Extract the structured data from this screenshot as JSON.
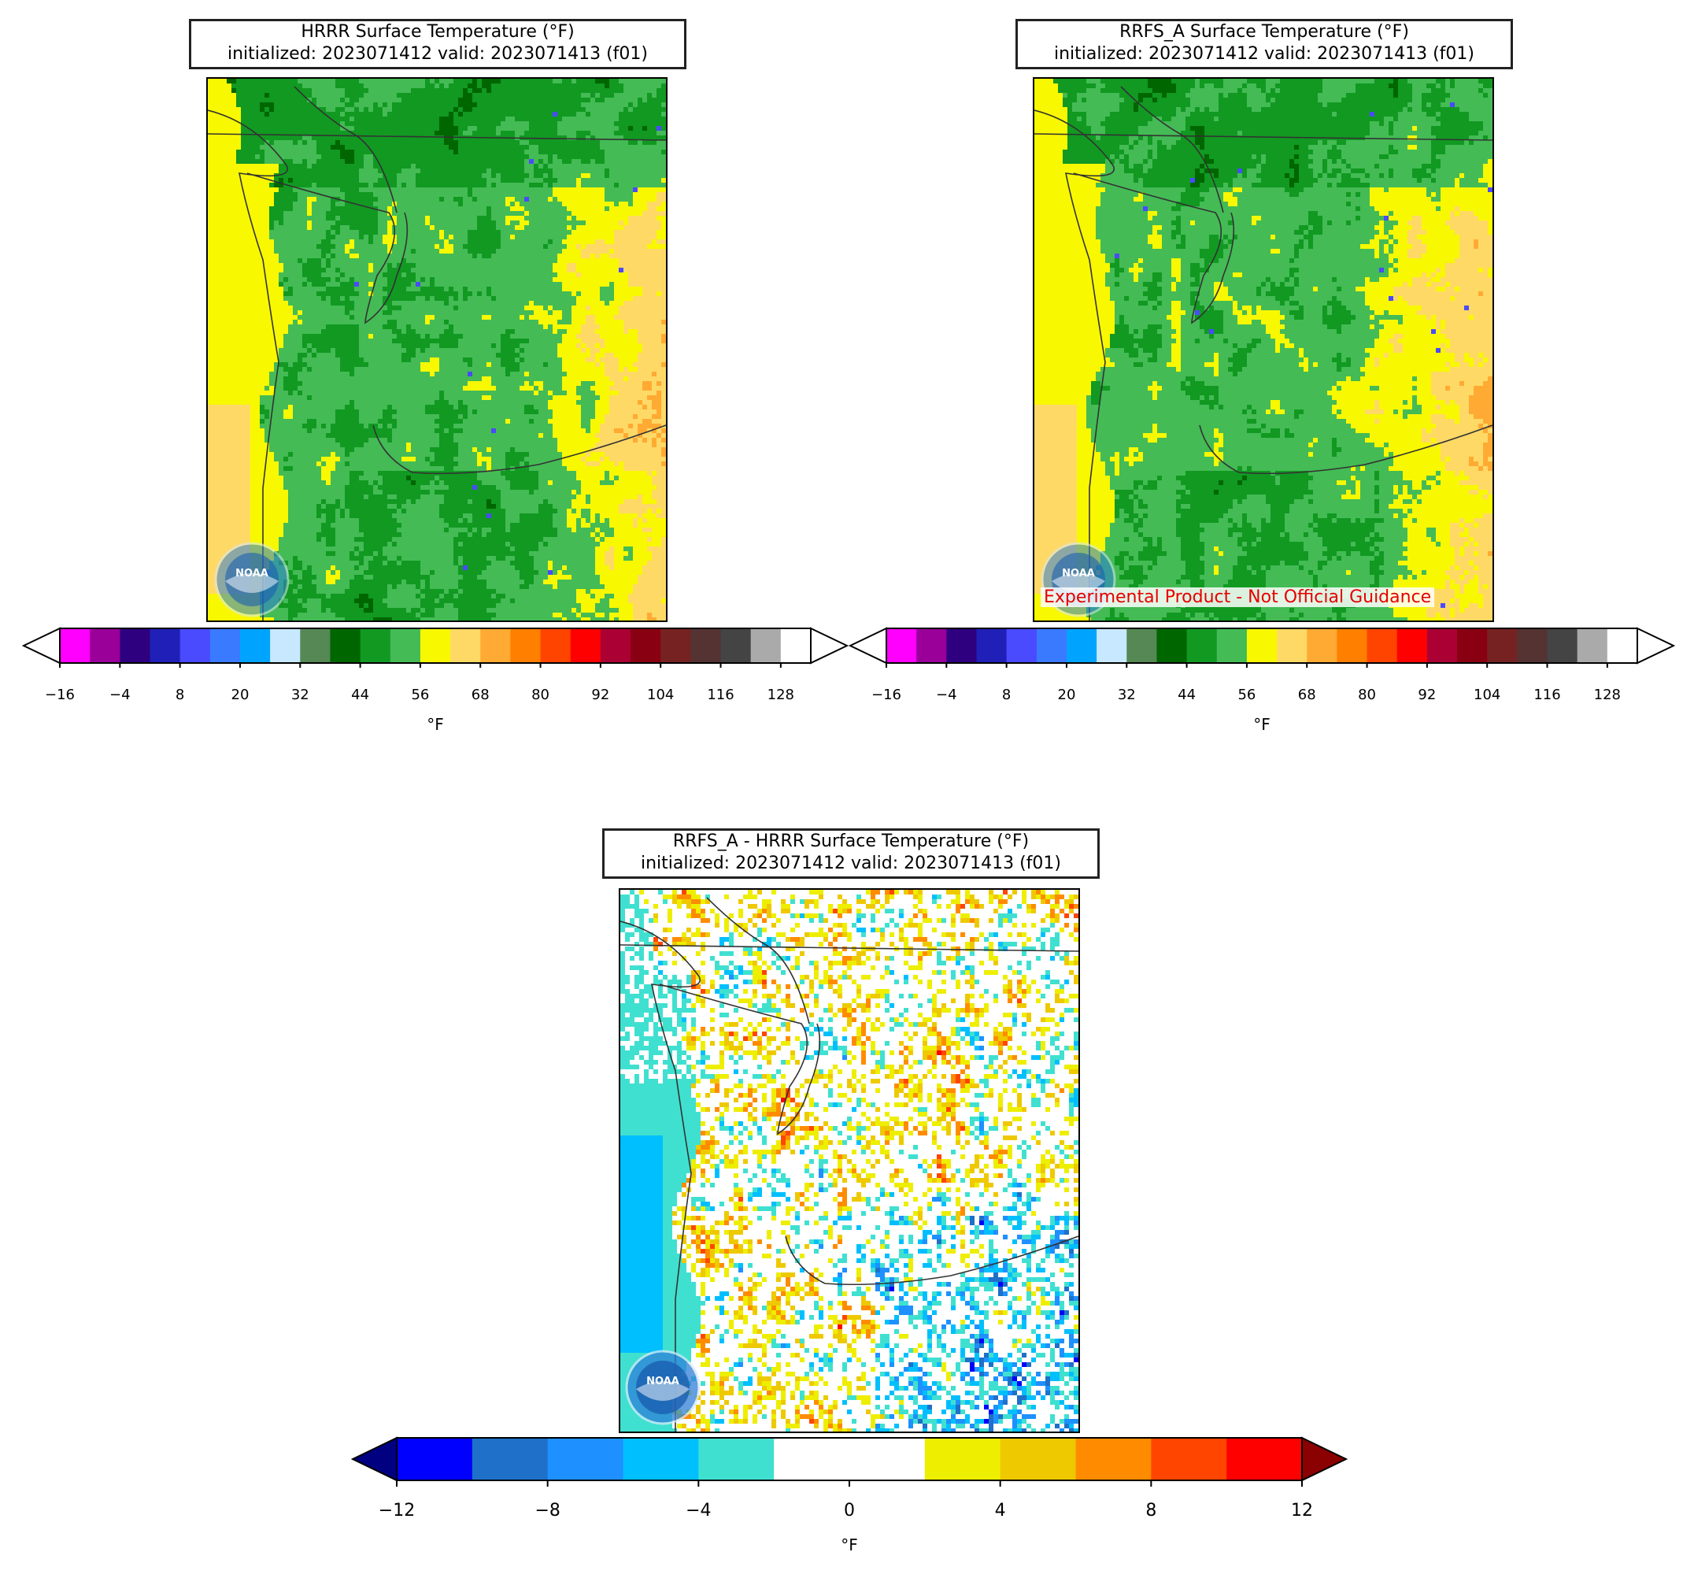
{
  "panels": [
    {
      "id": "hrrr",
      "title_line1": "HRRR Surface Temperature (°F)",
      "title_line2": "initialized: 2023071412 valid: 2023071413 (f01)",
      "field": "temp",
      "logo_text": "NOAA",
      "experimental": ""
    },
    {
      "id": "rrfs",
      "title_line1": "RRFS_A Surface Temperature (°F)",
      "title_line2": "initialized: 2023071412 valid: 2023071413 (f01)",
      "field": "temp2",
      "logo_text": "NOAA",
      "experimental": "Experimental Product - Not Official Guidance"
    },
    {
      "id": "diff",
      "title_line1": "RRFS_A - HRRR Surface Temperature (°F)",
      "title_line2": "initialized: 2023071412 valid: 2023071413 (f01)",
      "field": "diff",
      "logo_text": "NOAA",
      "experimental": ""
    }
  ],
  "temp_colorbar": {
    "ticks": [
      "−16",
      "−4",
      "8",
      "20",
      "32",
      "44",
      "56",
      "68",
      "80",
      "92",
      "104",
      "116",
      "128"
    ],
    "unit": "°F",
    "colors": [
      "#ff00ff",
      "#9a0099",
      "#2e0080",
      "#2020b8",
      "#4a4aff",
      "#3a7aff",
      "#00a4ff",
      "#c8e8ff",
      "#558855",
      "#006600",
      "#119922",
      "#44bb55",
      "#f8f800",
      "#ffd966",
      "#ffaa33",
      "#ff7f00",
      "#ff4400",
      "#ff0000",
      "#aa0033",
      "#880011",
      "#772222",
      "#553333",
      "#444444",
      "#aaaaaa",
      "#ffffff"
    ]
  },
  "diff_colorbar": {
    "ticks": [
      "−12",
      "−8",
      "−4",
      "0",
      "4",
      "8",
      "12"
    ],
    "unit": "°F",
    "colors": [
      "#0000ff",
      "#1e70c8",
      "#1e90ff",
      "#00bfff",
      "#40e0d0",
      "#ffffff",
      "#ffffff",
      "#eeee00",
      "#eec900",
      "#ff8c00",
      "#ff4500",
      "#ff0000"
    ],
    "under_color": "#000080",
    "over_color": "#8b0000"
  }
}
